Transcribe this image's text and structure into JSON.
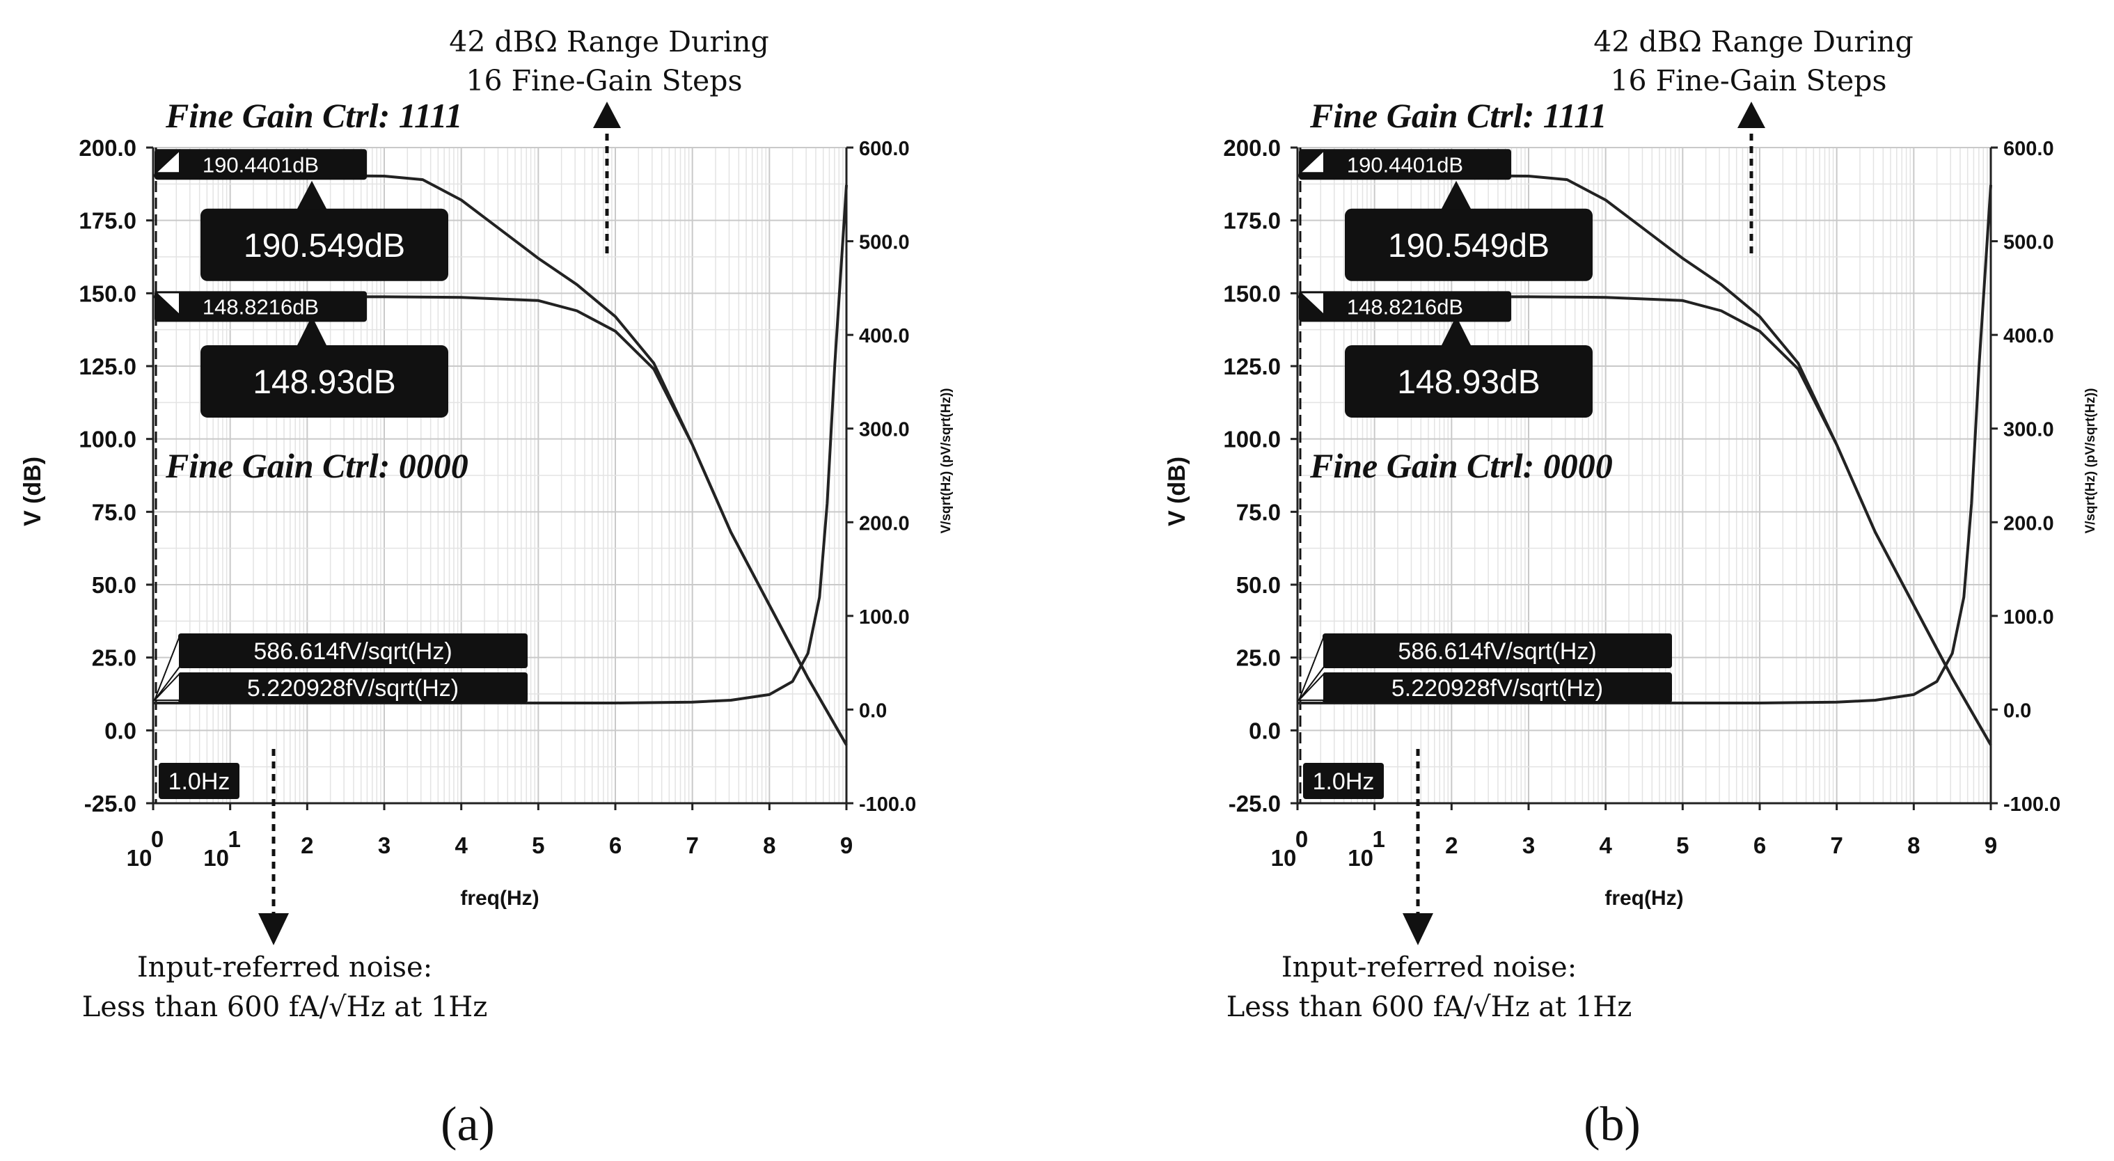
{
  "chart_data": [
    {
      "type": "line",
      "panel_label": "(a)",
      "xlabel": "freq(Hz)",
      "ylabel_left": "V (dB)",
      "ylabel_right": "V/sqrt(Hz) (pV/sqrt(Hz))",
      "xlim": [
        0,
        9
      ],
      "ylim_left": [
        -25,
        200
      ],
      "ylim_right": [
        -100,
        600
      ],
      "x_tick_labels": [
        {
          "x": 0,
          "text": "10",
          "exp": "0"
        },
        {
          "x": 1,
          "text": "10",
          "exp": "1"
        },
        {
          "x": 2,
          "text": "2"
        },
        {
          "x": 3,
          "text": "3"
        },
        {
          "x": 4,
          "text": "4"
        },
        {
          "x": 5,
          "text": "5"
        },
        {
          "x": 6,
          "text": "6"
        },
        {
          "x": 7,
          "text": "7"
        },
        {
          "x": 8,
          "text": "8"
        },
        {
          "x": 9,
          "text": "9"
        }
      ],
      "y_left_ticks": [
        {
          "v": 200,
          "text": "200.0"
        },
        {
          "v": 175,
          "text": "175.0"
        },
        {
          "v": 150,
          "text": "150.0"
        },
        {
          "v": 125,
          "text": "125.0"
        },
        {
          "v": 100,
          "text": "100.0"
        },
        {
          "v": 75,
          "text": "75.0"
        },
        {
          "v": 50,
          "text": "50.0"
        },
        {
          "v": 25,
          "text": "25.0"
        },
        {
          "v": 0,
          "text": "0.0"
        },
        {
          "v": -25,
          "text": "-25.0"
        }
      ],
      "y_right_ticks": [
        {
          "v": 600,
          "text": "600.0"
        },
        {
          "v": 500,
          "text": "500.0"
        },
        {
          "v": 400,
          "text": "400.0"
        },
        {
          "v": 300,
          "text": "300.0"
        },
        {
          "v": 200,
          "text": "200.0"
        },
        {
          "v": 100,
          "text": "100.0"
        },
        {
          "v": 0,
          "text": "0.0"
        },
        {
          "v": -100,
          "text": "-100.0"
        }
      ],
      "series": [
        {
          "name": "Fine Gain Ctrl: 1111",
          "axis": "left",
          "x": [
            0,
            1,
            2,
            3,
            3.5,
            4,
            4.5,
            5,
            5.5,
            6,
            6.5,
            7,
            7.5,
            8,
            8.5,
            9
          ],
          "y": [
            190.4,
            190.4,
            190.4,
            190.2,
            189,
            182,
            172,
            162,
            153,
            142,
            126,
            98,
            68,
            43,
            18,
            -5
          ]
        },
        {
          "name": "Fine Gain Ctrl: 0000",
          "axis": "left",
          "x": [
            0,
            1,
            2,
            3,
            4,
            5,
            5.5,
            6,
            6.5,
            7,
            7.5,
            8,
            8.5,
            9
          ],
          "y": [
            148.8,
            148.8,
            148.8,
            148.8,
            148.6,
            147.5,
            144,
            137,
            124,
            98,
            68,
            43,
            18,
            -5
          ]
        },
        {
          "name": "Input-referred noise",
          "axis": "right",
          "x": [
            0,
            1,
            2,
            3,
            4,
            5,
            6,
            7,
            7.5,
            8,
            8.3,
            8.5,
            8.65,
            8.75,
            8.85,
            9
          ],
          "y": [
            7,
            7,
            7,
            7,
            7,
            7,
            7,
            8,
            10,
            16,
            30,
            60,
            120,
            220,
            370,
            560
          ]
        }
      ],
      "markers": [
        {
          "text": "190.4401dB",
          "x": 0,
          "v": 190.4,
          "axis": "left"
        },
        {
          "text": "148.8216dB",
          "x": 0,
          "v": 148.8,
          "axis": "left"
        },
        {
          "text": "190.549dB",
          "x": 2.2,
          "v": 190.5,
          "axis": "left",
          "big": true
        },
        {
          "text": "148.93dB",
          "x": 2.2,
          "v": 148.9,
          "axis": "left",
          "big": true
        },
        {
          "text": "586.614fV/sqrt(Hz)",
          "x": 0,
          "v": 7,
          "axis": "right"
        },
        {
          "text": "5.220928fV/sqrt(Hz)",
          "x": 0,
          "v": 7,
          "axis": "right"
        },
        {
          "text": "1.0Hz",
          "x": 0,
          "v": -25,
          "axis": "left"
        }
      ],
      "annotations": {
        "fine_gain_high": "Fine Gain Ctrl: 1111",
        "fine_gain_low": "Fine Gain Ctrl: 0000",
        "range_line1": "42 dBΩ Range During",
        "range_line2": "16  Fine-Gain Steps",
        "noise_line1": "Input-referred noise:",
        "noise_line2": "Less than 600 fA/√Hz  at 1Hz"
      }
    },
    {
      "type": "line",
      "panel_label": "(b)",
      "xlabel": "freq(Hz)",
      "ylabel_left": "V (dB)",
      "ylabel_right": "V/sqrt(Hz) (pV/sqrt(Hz))",
      "xlim": [
        0,
        9
      ],
      "ylim_left": [
        -25,
        200
      ],
      "ylim_right": [
        -100,
        600
      ],
      "x_tick_labels": [
        {
          "x": 0,
          "text": "10",
          "exp": "0"
        },
        {
          "x": 1,
          "text": "10",
          "exp": "1"
        },
        {
          "x": 2,
          "text": "2"
        },
        {
          "x": 3,
          "text": "3"
        },
        {
          "x": 4,
          "text": "4"
        },
        {
          "x": 5,
          "text": "5"
        },
        {
          "x": 6,
          "text": "6"
        },
        {
          "x": 7,
          "text": "7"
        },
        {
          "x": 8,
          "text": "8"
        },
        {
          "x": 9,
          "text": "9"
        }
      ],
      "y_left_ticks": [
        {
          "v": 200,
          "text": "200.0"
        },
        {
          "v": 175,
          "text": "175.0"
        },
        {
          "v": 150,
          "text": "150.0"
        },
        {
          "v": 125,
          "text": "125.0"
        },
        {
          "v": 100,
          "text": "100.0"
        },
        {
          "v": 75,
          "text": "75.0"
        },
        {
          "v": 50,
          "text": "50.0"
        },
        {
          "v": 25,
          "text": "25.0"
        },
        {
          "v": 0,
          "text": "0.0"
        },
        {
          "v": -25,
          "text": "-25.0"
        }
      ],
      "y_right_ticks": [
        {
          "v": 600,
          "text": "600.0"
        },
        {
          "v": 500,
          "text": "500.0"
        },
        {
          "v": 400,
          "text": "400.0"
        },
        {
          "v": 300,
          "text": "300.0"
        },
        {
          "v": 200,
          "text": "200.0"
        },
        {
          "v": 100,
          "text": "100.0"
        },
        {
          "v": 0,
          "text": "0.0"
        },
        {
          "v": -100,
          "text": "-100.0"
        }
      ],
      "series": [
        {
          "name": "Fine Gain Ctrl: 1111",
          "axis": "left",
          "x": [
            0,
            1,
            2,
            3,
            3.5,
            4,
            4.5,
            5,
            5.5,
            6,
            6.5,
            7,
            7.5,
            8,
            8.5,
            9
          ],
          "y": [
            190.4,
            190.4,
            190.4,
            190.2,
            189,
            182,
            172,
            162,
            153,
            142,
            126,
            98,
            68,
            43,
            18,
            -5
          ]
        },
        {
          "name": "Fine Gain Ctrl: 0000",
          "axis": "left",
          "x": [
            0,
            1,
            2,
            3,
            4,
            5,
            5.5,
            6,
            6.5,
            7,
            7.5,
            8,
            8.5,
            9
          ],
          "y": [
            148.8,
            148.8,
            148.8,
            148.8,
            148.6,
            147.5,
            144,
            137,
            124,
            98,
            68,
            43,
            18,
            -5
          ]
        },
        {
          "name": "Input-referred noise",
          "axis": "right",
          "x": [
            0,
            1,
            2,
            3,
            4,
            5,
            6,
            7,
            7.5,
            8,
            8.3,
            8.5,
            8.65,
            8.75,
            8.85,
            9
          ],
          "y": [
            7,
            7,
            7,
            7,
            7,
            7,
            7,
            8,
            10,
            16,
            30,
            60,
            120,
            220,
            370,
            560
          ]
        }
      ],
      "markers": [
        {
          "text": "190.4401dB",
          "x": 0,
          "v": 190.4,
          "axis": "left"
        },
        {
          "text": "148.8216dB",
          "x": 0,
          "v": 148.8,
          "axis": "left"
        },
        {
          "text": "190.549dB",
          "x": 2.2,
          "v": 190.5,
          "axis": "left",
          "big": true
        },
        {
          "text": "148.93dB",
          "x": 2.2,
          "v": 148.9,
          "axis": "left",
          "big": true
        },
        {
          "text": "586.614fV/sqrt(Hz)",
          "x": 0,
          "v": 7,
          "axis": "right"
        },
        {
          "text": "5.220928fV/sqrt(Hz)",
          "x": 0,
          "v": 7,
          "axis": "right"
        },
        {
          "text": "1.0Hz",
          "x": 0,
          "v": -25,
          "axis": "left"
        }
      ],
      "annotations": {
        "fine_gain_high": "Fine Gain Ctrl: 1111",
        "fine_gain_low": "Fine Gain Ctrl: 0000",
        "range_line1": "42 dBΩ Range During",
        "range_line2": "16  Fine-Gain Steps",
        "noise_line1": "Input-referred noise:",
        "noise_line2": "Less than 600 fA/√Hz  at 1Hz"
      }
    }
  ]
}
